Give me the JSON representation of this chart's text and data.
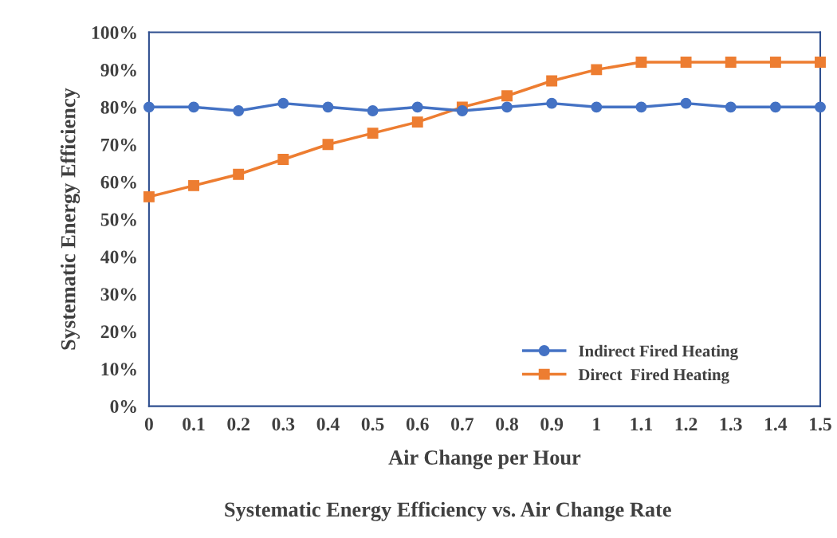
{
  "chart_data": {
    "type": "line",
    "title": "Systematic Energy Efficiency vs. Air Change Rate",
    "xlabel": "Air Change per Hour",
    "ylabel": "Systematic Energy Efficiency",
    "categories": [
      "0",
      "0.1",
      "0.2",
      "0.3",
      "0.4",
      "0.5",
      "0.6",
      "0.7",
      "0.8",
      "0.9",
      "1",
      "1.1",
      "1.2",
      "1.3",
      "1.4",
      "1.5"
    ],
    "series": [
      {
        "name": "Indirect Fired Heating",
        "color": "#4472c4",
        "marker": "circle",
        "values": [
          80,
          80,
          79,
          81,
          80,
          79,
          80,
          79,
          80,
          81,
          80,
          80,
          81,
          80,
          80,
          80
        ]
      },
      {
        "name": "Direct  Fired Heating",
        "color": "#ed7d31",
        "marker": "square",
        "values": [
          56,
          59,
          62,
          66,
          70,
          73,
          76,
          80,
          83,
          87,
          90,
          92,
          92,
          92,
          92,
          92
        ]
      }
    ],
    "ylim": [
      0,
      100
    ],
    "yticks": [
      {
        "value": 0,
        "label": "0%"
      },
      {
        "value": 10,
        "label": "10%"
      },
      {
        "value": 20,
        "label": "20%"
      },
      {
        "value": 30,
        "label": "30%"
      },
      {
        "value": 40,
        "label": "40%"
      },
      {
        "value": 50,
        "label": "50%"
      },
      {
        "value": 60,
        "label": "60%"
      },
      {
        "value": 70,
        "label": "70%"
      },
      {
        "value": 80,
        "label": "80%"
      },
      {
        "value": 90,
        "label": "90%"
      },
      {
        "value": 100,
        "label": "100%"
      }
    ],
    "grid": false,
    "legend": "bottom right",
    "line_style": "solid"
  }
}
